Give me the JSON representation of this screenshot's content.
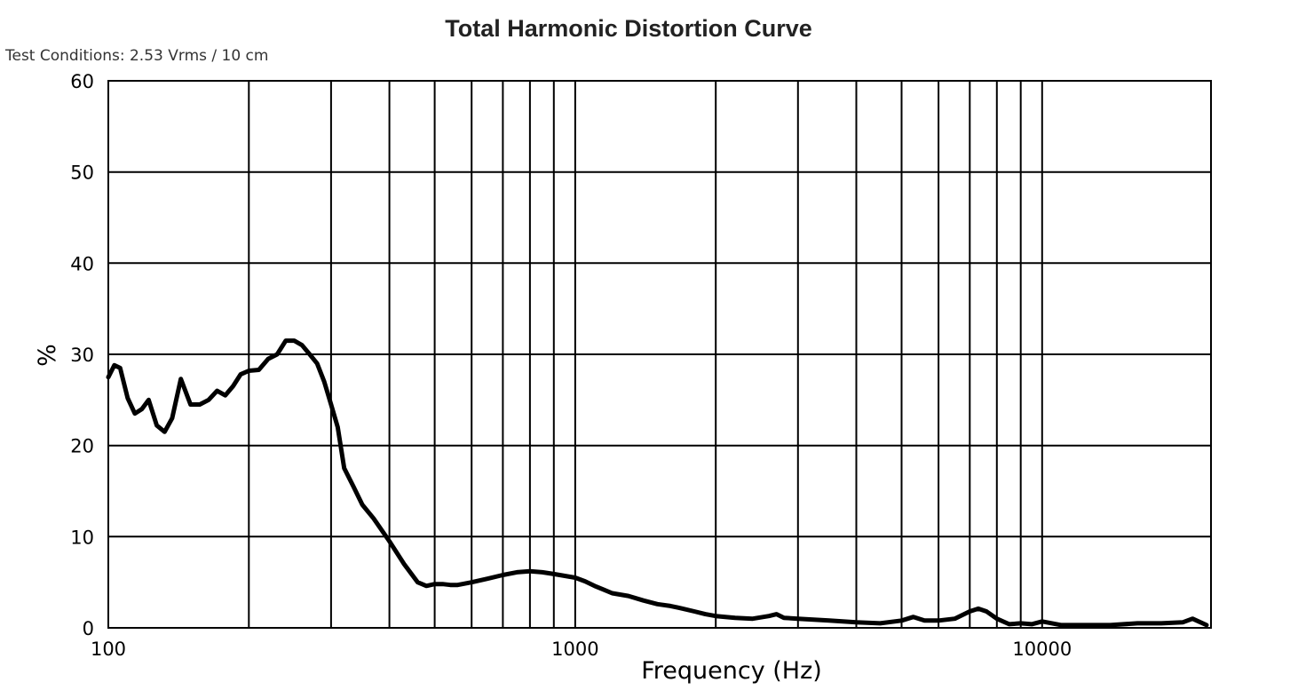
{
  "chart_data": {
    "type": "line",
    "title": "Total Harmonic Distortion Curve",
    "subtitle": "Test Conditions: 2.53 Vrms / 10 cm",
    "xlabel": "Frequency (Hz)",
    "ylabel": "%",
    "x_scale": "log",
    "xlim": [
      100,
      23000
    ],
    "ylim": [
      0,
      60
    ],
    "x_ticks": [
      {
        "value": 100,
        "label": "100"
      },
      {
        "value": 1000,
        "label": "1000"
      },
      {
        "value": 10000,
        "label": "10000"
      }
    ],
    "y_ticks": [
      0,
      10,
      20,
      30,
      40,
      50,
      60
    ],
    "x_gridlines": [
      200,
      300,
      400,
      500,
      600,
      700,
      800,
      900,
      1000,
      2000,
      3000,
      4000,
      5000,
      6000,
      7000,
      8000,
      9000,
      10000
    ],
    "y_gridlines": [
      10,
      20,
      30,
      40,
      50,
      60
    ],
    "grid": true,
    "line_color": "#000000",
    "series": [
      {
        "x": [
          100,
          103,
          106,
          110,
          114,
          118,
          122,
          127,
          132,
          137,
          143,
          150,
          157,
          164,
          171,
          178,
          185,
          192,
          200,
          210,
          220,
          230,
          240,
          250,
          260,
          270,
          280,
          290,
          300,
          310,
          320,
          335,
          350,
          370,
          400,
          430,
          460,
          480,
          500,
          520,
          540,
          560,
          600,
          650,
          700,
          750,
          800,
          850,
          900,
          950,
          1000,
          1050,
          1100,
          1150,
          1200,
          1300,
          1400,
          1500,
          1600,
          1700,
          1800,
          1900,
          2000,
          2200,
          2400,
          2600,
          2700,
          2800,
          3000,
          3500,
          4000,
          4500,
          5000,
          5300,
          5600,
          6000,
          6500,
          7000,
          7300,
          7600,
          8000,
          8500,
          9000,
          9500,
          10000,
          11000,
          12000,
          14000,
          16000,
          18000,
          20000,
          21000,
          22500
        ],
        "y": [
          27.5,
          28.8,
          28.5,
          25.2,
          23.5,
          24.0,
          25.0,
          22.2,
          21.5,
          23.0,
          27.3,
          24.5,
          24.5,
          25.0,
          26.0,
          25.5,
          26.5,
          27.8,
          28.2,
          28.3,
          29.5,
          30.0,
          31.5,
          31.5,
          31.0,
          30.0,
          29.0,
          27.0,
          24.5,
          22.0,
          17.5,
          15.5,
          13.5,
          12.0,
          9.5,
          7.0,
          5.0,
          4.6,
          4.8,
          4.8,
          4.7,
          4.7,
          5.0,
          5.4,
          5.8,
          6.1,
          6.2,
          6.1,
          5.9,
          5.7,
          5.5,
          5.1,
          4.6,
          4.2,
          3.8,
          3.5,
          3.0,
          2.6,
          2.4,
          2.1,
          1.8,
          1.5,
          1.3,
          1.1,
          1.0,
          1.3,
          1.5,
          1.1,
          1.0,
          0.8,
          0.6,
          0.5,
          0.8,
          1.2,
          0.8,
          0.8,
          1.0,
          1.8,
          2.1,
          1.8,
          1.0,
          0.4,
          0.5,
          0.4,
          0.7,
          0.3,
          0.3,
          0.3,
          0.5,
          0.5,
          0.6,
          1.0,
          0.3
        ]
      }
    ]
  }
}
